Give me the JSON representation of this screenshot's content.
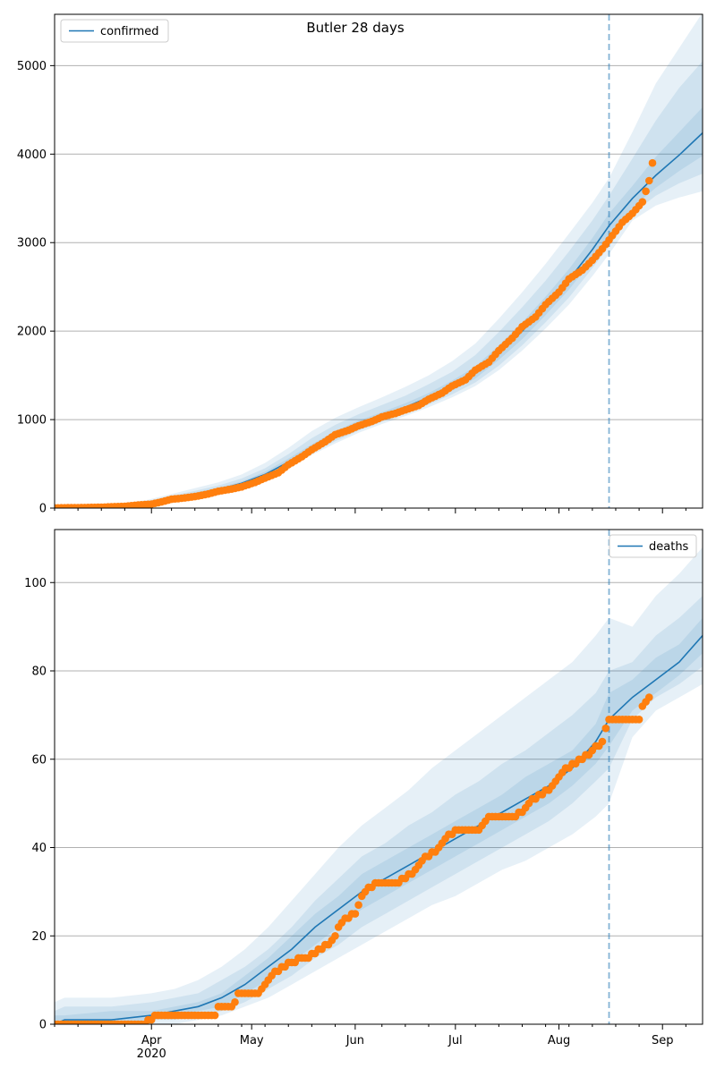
{
  "figure": {
    "title": "Butler 28 days"
  },
  "colors": {
    "model_line": "#1f77b4",
    "band_fill": "#1f77b4",
    "observed": "#ff7f0e",
    "grid": "#b0b0b0",
    "forecast_marker": "#1f77b4"
  },
  "x_axis": {
    "date_range": [
      "2020-03-03",
      "2020-09-13"
    ],
    "forecast_start": "2020-08-16",
    "major_ticks": [
      {
        "date": "2020-04-01",
        "label": "Apr",
        "sublabel": "2020"
      },
      {
        "date": "2020-05-01",
        "label": "May",
        "sublabel": ""
      },
      {
        "date": "2020-06-01",
        "label": "Jun",
        "sublabel": ""
      },
      {
        "date": "2020-07-01",
        "label": "Jul",
        "sublabel": ""
      },
      {
        "date": "2020-08-01",
        "label": "Aug",
        "sublabel": ""
      },
      {
        "date": "2020-09-01",
        "label": "Sep",
        "sublabel": ""
      }
    ]
  },
  "chart_data": [
    {
      "type": "line",
      "panel": "confirmed",
      "legend": {
        "label": "confirmed",
        "placement": "top-left"
      },
      "ylim": [
        0,
        5580
      ],
      "yticks": [
        0,
        1000,
        2000,
        3000,
        4000,
        5000
      ],
      "grid": true,
      "model": {
        "x": [
          "2020-03-03",
          "2020-03-10",
          "2020-03-17",
          "2020-03-24",
          "2020-03-31",
          "2020-04-07",
          "2020-04-14",
          "2020-04-21",
          "2020-04-28",
          "2020-05-05",
          "2020-05-12",
          "2020-05-19",
          "2020-05-26",
          "2020-06-02",
          "2020-06-09",
          "2020-06-16",
          "2020-06-23",
          "2020-06-30",
          "2020-07-07",
          "2020-07-14",
          "2020-07-21",
          "2020-07-28",
          "2020-08-04",
          "2020-08-11",
          "2020-08-16",
          "2020-08-23",
          "2020-08-30",
          "2020-09-06",
          "2020-09-13"
        ],
        "y": [
          0,
          5,
          15,
          30,
          60,
          110,
          160,
          210,
          280,
          380,
          520,
          680,
          820,
          940,
          1040,
          1140,
          1250,
          1380,
          1530,
          1750,
          2000,
          2280,
          2580,
          2920,
          3190,
          3500,
          3760,
          3990,
          4240
        ]
      },
      "bands": [
        {
          "lower": [
            0,
            3,
            10,
            22,
            45,
            85,
            125,
            170,
            230,
            320,
            450,
            600,
            730,
            850,
            950,
            1040,
            1140,
            1250,
            1380,
            1560,
            1780,
            2030,
            2300,
            2620,
            2870,
            3250,
            3420,
            3510,
            3580
          ],
          "upper": [
            4,
            14,
            30,
            55,
            95,
            160,
            225,
            290,
            380,
            510,
            680,
            870,
            1020,
            1140,
            1250,
            1370,
            1500,
            1660,
            1860,
            2140,
            2440,
            2760,
            3100,
            3450,
            3730,
            4250,
            4800,
            5200,
            5600
          ]
        },
        {
          "lower": [
            0,
            4,
            12,
            25,
            50,
            92,
            135,
            180,
            245,
            340,
            470,
            625,
            755,
            875,
            975,
            1070,
            1170,
            1285,
            1420,
            1610,
            1840,
            2100,
            2380,
            2710,
            2960,
            3330,
            3530,
            3670,
            3780
          ],
          "upper": [
            2,
            10,
            24,
            44,
            80,
            140,
            195,
            255,
            335,
            450,
            610,
            790,
            940,
            1060,
            1165,
            1270,
            1400,
            1540,
            1730,
            1990,
            2270,
            2570,
            2900,
            3250,
            3530,
            3950,
            4380,
            4750,
            5050
          ]
        },
        {
          "lower": [
            0,
            4,
            13,
            27,
            54,
            100,
            145,
            192,
            260,
            355,
            490,
            650,
            785,
            905,
            1005,
            1100,
            1205,
            1325,
            1465,
            1675,
            1910,
            2180,
            2470,
            2800,
            3060,
            3400,
            3620,
            3810,
            3980
          ],
          "upper": [
            1,
            7,
            19,
            35,
            68,
            122,
            176,
            230,
            300,
            410,
            560,
            720,
            870,
            990,
            1085,
            1185,
            1300,
            1440,
            1600,
            1840,
            2100,
            2390,
            2700,
            3050,
            3330,
            3640,
            3970,
            4250,
            4530
          ]
        }
      ],
      "observed": {
        "x": [
          "2020-03-03",
          "2020-03-10",
          "2020-03-17",
          "2020-03-24",
          "2020-03-28",
          "2020-04-01",
          "2020-04-04",
          "2020-04-07",
          "2020-04-11",
          "2020-04-14",
          "2020-04-18",
          "2020-04-21",
          "2020-04-25",
          "2020-04-28",
          "2020-05-02",
          "2020-05-05",
          "2020-05-09",
          "2020-05-12",
          "2020-05-16",
          "2020-05-19",
          "2020-05-23",
          "2020-05-26",
          "2020-05-30",
          "2020-06-02",
          "2020-06-06",
          "2020-06-09",
          "2020-06-13",
          "2020-06-16",
          "2020-06-20",
          "2020-06-23",
          "2020-06-27",
          "2020-06-30",
          "2020-07-04",
          "2020-07-07",
          "2020-07-11",
          "2020-07-14",
          "2020-07-18",
          "2020-07-21",
          "2020-07-25",
          "2020-07-28",
          "2020-08-01",
          "2020-08-04",
          "2020-08-08",
          "2020-08-11",
          "2020-08-14",
          "2020-08-17",
          "2020-08-20",
          "2020-08-23",
          "2020-08-26",
          "2020-08-28",
          "2020-08-29"
        ],
        "y": [
          2,
          5,
          10,
          20,
          35,
          45,
          70,
          100,
          115,
          130,
          160,
          190,
          215,
          240,
          290,
          340,
          400,
          490,
          580,
          660,
          750,
          830,
          880,
          930,
          980,
          1030,
          1070,
          1110,
          1160,
          1230,
          1300,
          1380,
          1450,
          1560,
          1650,
          1780,
          1920,
          2050,
          2160,
          2300,
          2440,
          2590,
          2690,
          2800,
          2930,
          3080,
          3230,
          3330,
          3460,
          3700,
          3900
        ]
      }
    },
    {
      "type": "line",
      "panel": "deaths",
      "legend": {
        "label": "deaths",
        "placement": "top-right"
      },
      "ylim": [
        0,
        112
      ],
      "yticks": [
        0,
        20,
        40,
        60,
        80,
        100
      ],
      "grid": true,
      "model": {
        "x": [
          "2020-03-03",
          "2020-03-06",
          "2020-03-20",
          "2020-04-01",
          "2020-04-08",
          "2020-04-15",
          "2020-04-22",
          "2020-04-29",
          "2020-05-06",
          "2020-05-13",
          "2020-05-20",
          "2020-05-27",
          "2020-06-03",
          "2020-06-10",
          "2020-06-17",
          "2020-06-24",
          "2020-07-01",
          "2020-07-08",
          "2020-07-15",
          "2020-07-22",
          "2020-07-29",
          "2020-08-05",
          "2020-08-12",
          "2020-08-16",
          "2020-08-23",
          "2020-08-30",
          "2020-09-06",
          "2020-09-13"
        ],
        "y": [
          0,
          1,
          1,
          2,
          3,
          4,
          6,
          9,
          13,
          17,
          22,
          26,
          30,
          33,
          36,
          39,
          42,
          45,
          48,
          51,
          54,
          58,
          64,
          69,
          74,
          78,
          82,
          88
        ]
      },
      "bands": [
        {
          "lower": [
            0,
            0,
            0,
            0,
            0,
            1,
            2,
            4,
            6,
            9,
            12,
            15,
            18,
            21,
            24,
            27,
            29,
            32,
            35,
            37,
            40,
            43,
            47,
            50,
            65,
            71,
            74,
            77
          ],
          "upper": [
            5,
            6,
            6,
            7,
            8,
            10,
            13,
            17,
            22,
            28,
            34,
            40,
            45,
            49,
            53,
            58,
            62,
            66,
            70,
            74,
            78,
            82,
            88,
            92,
            90,
            97,
            102,
            108
          ]
        },
        {
          "lower": [
            0,
            0,
            0,
            1,
            1,
            2,
            3,
            5,
            8,
            11,
            15,
            18,
            22,
            25,
            28,
            31,
            34,
            37,
            40,
            43,
            46,
            50,
            55,
            58,
            69,
            74,
            77,
            81
          ],
          "upper": [
            3,
            4,
            4,
            5,
            6,
            7,
            10,
            13,
            17,
            22,
            28,
            33,
            38,
            41,
            45,
            48,
            52,
            55,
            59,
            62,
            66,
            70,
            75,
            80,
            82,
            88,
            92,
            97
          ]
        },
        {
          "lower": [
            0,
            0,
            0,
            1,
            2,
            3,
            4,
            7,
            10,
            14,
            18,
            22,
            26,
            29,
            32,
            35,
            38,
            41,
            44,
            47,
            50,
            54,
            59,
            63,
            71,
            75,
            79,
            84
          ],
          "upper": [
            2,
            2,
            3,
            3,
            4,
            5,
            7,
            11,
            15,
            20,
            25,
            29,
            34,
            37,
            40,
            43,
            46,
            49,
            52,
            56,
            59,
            62,
            68,
            75,
            78,
            83,
            86,
            92
          ]
        }
      ],
      "observed": {
        "x": [
          "2020-03-03",
          "2020-03-30",
          "2020-04-01",
          "2020-04-03",
          "2020-04-20",
          "2020-04-21",
          "2020-04-25",
          "2020-04-26",
          "2020-04-27",
          "2020-05-03",
          "2020-05-04",
          "2020-05-06",
          "2020-05-08",
          "2020-05-11",
          "2020-05-13",
          "2020-05-20",
          "2020-05-22",
          "2020-05-25",
          "2020-05-28",
          "2020-06-01",
          "2020-06-03",
          "2020-06-05",
          "2020-06-08",
          "2020-06-13",
          "2020-06-16",
          "2020-06-19",
          "2020-06-21",
          "2020-06-25",
          "2020-06-27",
          "2020-07-01",
          "2020-07-08",
          "2020-07-11",
          "2020-07-18",
          "2020-07-21",
          "2020-07-24",
          "2020-07-27",
          "2020-07-30",
          "2020-08-02",
          "2020-08-05",
          "2020-08-08",
          "2020-08-11",
          "2020-08-13",
          "2020-08-14",
          "2020-08-16",
          "2020-08-25",
          "2020-08-26",
          "2020-08-27",
          "2020-08-28"
        ],
        "y": [
          0,
          0,
          1,
          2,
          2,
          4,
          4,
          5,
          7,
          7,
          8,
          10,
          12,
          13,
          14,
          16,
          17,
          19,
          23,
          25,
          29,
          31,
          32,
          32,
          33,
          35,
          37,
          39,
          41,
          44,
          44,
          47,
          47,
          48,
          51,
          52,
          54,
          57,
          59,
          60,
          62,
          63,
          64,
          69,
          69,
          72,
          73,
          74
        ]
      }
    }
  ]
}
